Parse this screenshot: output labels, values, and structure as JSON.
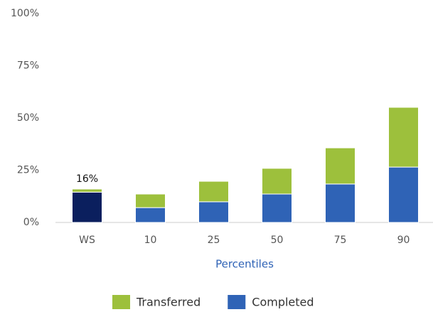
{
  "chart_data": {
    "type": "stacked_bar",
    "x_label": "Percentiles",
    "categories": [
      "WS",
      "10",
      "25",
      "50",
      "75",
      "90"
    ],
    "series": [
      {
        "name": "Completed",
        "color": "#2f63b6",
        "colors": [
          "#0b1f5e",
          "#2f63b6",
          "#2f63b6",
          "#2f63b6",
          "#2f63b6",
          "#2f63b6"
        ],
        "values": [
          14.5,
          7.1,
          9.9,
          13.6,
          18.4,
          26.5
        ]
      },
      {
        "name": "Transferred",
        "color": "#9dc03c",
        "values": [
          1.5,
          6.5,
          9.8,
          12.3,
          17.3,
          28.6
        ]
      }
    ],
    "annotations": [
      {
        "text": "16%",
        "category": "WS",
        "value": 16
      }
    ],
    "ylim": [
      0,
      100
    ],
    "yticks": [
      {
        "value": 0,
        "label": "0%"
      },
      {
        "value": 25,
        "label": "25%"
      },
      {
        "value": 50,
        "label": "50%"
      },
      {
        "value": 75,
        "label": "75%"
      },
      {
        "value": 100,
        "label": "100%"
      }
    ],
    "legend": "bottom"
  }
}
